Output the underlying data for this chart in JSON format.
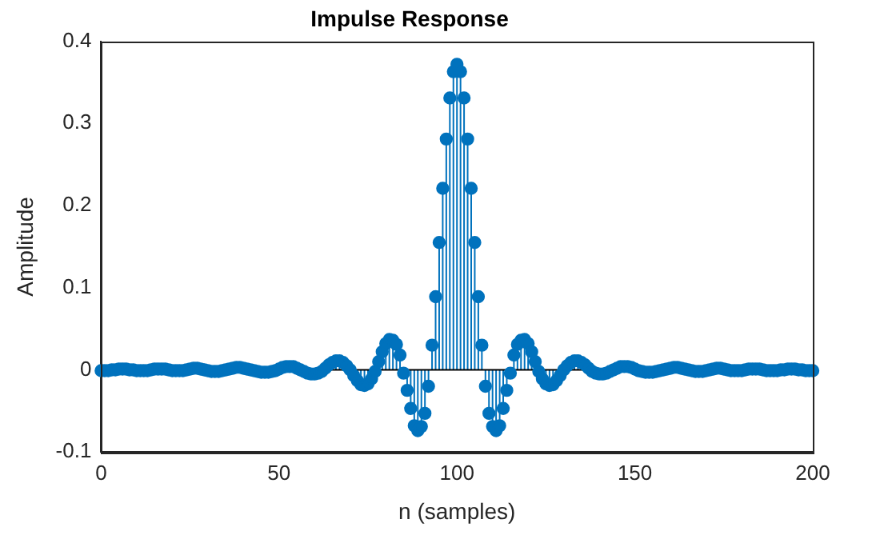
{
  "chart_data": {
    "type": "lollipop",
    "title": "Impulse Response",
    "xlabel": "n (samples)",
    "ylabel": "Amplitude",
    "x": [
      0,
      1,
      2,
      3,
      4,
      5,
      6,
      7,
      8,
      9,
      10,
      11,
      12,
      13,
      14,
      15,
      16,
      17,
      18,
      19,
      20,
      21,
      22,
      23,
      24,
      25,
      26,
      27,
      28,
      29,
      30,
      31,
      32,
      33,
      34,
      35,
      36,
      37,
      38,
      39,
      40,
      41,
      42,
      43,
      44,
      45,
      46,
      47,
      48,
      49,
      50,
      51,
      52,
      53,
      54,
      55,
      56,
      57,
      58,
      59,
      60,
      61,
      62,
      63,
      64,
      65,
      66,
      67,
      68,
      69,
      70,
      71,
      72,
      73,
      74,
      75,
      76,
      77,
      78,
      79,
      80,
      81,
      82,
      83,
      84,
      85,
      86,
      87,
      88,
      89,
      90,
      91,
      92,
      93,
      94,
      95,
      96,
      97,
      98,
      99,
      100,
      101,
      102,
      103,
      104,
      105,
      106,
      107,
      108,
      109,
      110,
      111,
      112,
      113,
      114,
      115,
      116,
      117,
      118,
      119,
      120,
      121,
      122,
      123,
      124,
      125,
      126,
      127,
      128,
      129,
      130,
      131,
      132,
      133,
      134,
      135,
      136,
      137,
      138,
      139,
      140,
      141,
      142,
      143,
      144,
      145,
      146,
      147,
      148,
      149,
      150,
      151,
      152,
      153,
      154,
      155,
      156,
      157,
      158,
      159,
      160,
      161,
      162,
      163,
      164,
      165,
      166,
      167,
      168,
      169,
      170,
      171,
      172,
      173,
      174,
      175,
      176,
      177,
      178,
      179,
      180,
      181,
      182,
      183,
      184,
      185,
      186,
      187,
      188,
      189,
      190,
      191,
      192,
      193,
      194,
      195,
      196,
      197,
      198,
      199,
      200
    ],
    "series": [
      {
        "color": "#0072bd",
        "values": [
          -0.001,
          -0.001,
          -0.001,
          0,
          0,
          0.001,
          0.001,
          0.001,
          0,
          0,
          -0.001,
          -0.001,
          -0.001,
          -0.001,
          0,
          0.001,
          0.001,
          0.001,
          0.001,
          0,
          -0.001,
          -0.001,
          -0.001,
          -0.001,
          0,
          0.001,
          0.002,
          0.002,
          0.001,
          0,
          -0.001,
          -0.002,
          -0.002,
          -0.002,
          -0.001,
          0,
          0.001,
          0.002,
          0.003,
          0.003,
          0.002,
          0.001,
          0,
          -0.001,
          -0.002,
          -0.003,
          -0.003,
          -0.003,
          -0.002,
          -0.001,
          0.001,
          0.003,
          0.004,
          0.004,
          0.004,
          0.002,
          0,
          -0.002,
          -0.004,
          -0.005,
          -0.005,
          -0.004,
          -0.002,
          0.002,
          0.006,
          0.009,
          0.011,
          0.011,
          0.009,
          0.005,
          0,
          -0.007,
          -0.013,
          -0.018,
          -0.019,
          -0.017,
          -0.011,
          -0.002,
          0.01,
          0.022,
          0.032,
          0.037,
          0.036,
          0.031,
          0.018,
          -0.004,
          -0.025,
          -0.047,
          -0.068,
          -0.074,
          -0.069,
          -0.053,
          -0.02,
          0.03,
          0.089,
          0.155,
          0.221,
          0.281,
          0.331,
          0.363,
          0.372,
          0.363,
          0.331,
          0.281,
          0.221,
          0.155,
          0.089,
          0.03,
          -0.02,
          -0.053,
          -0.069,
          -0.074,
          -0.068,
          -0.047,
          -0.025,
          -0.004,
          0.018,
          0.031,
          0.036,
          0.037,
          0.032,
          0.022,
          0.01,
          -0.002,
          -0.011,
          -0.017,
          -0.019,
          -0.018,
          -0.013,
          -0.007,
          0,
          0.005,
          0.009,
          0.011,
          0.011,
          0.009,
          0.006,
          0.002,
          -0.002,
          -0.004,
          -0.005,
          -0.005,
          -0.004,
          -0.002,
          0,
          0.002,
          0.004,
          0.004,
          0.004,
          0.003,
          0.001,
          -0.001,
          -0.002,
          -0.003,
          -0.003,
          -0.003,
          -0.002,
          -0.001,
          0,
          0.001,
          0.002,
          0.003,
          0.003,
          0.002,
          0.001,
          0,
          -0.001,
          -0.002,
          -0.002,
          -0.002,
          -0.001,
          0,
          0.001,
          0.002,
          0.002,
          0.001,
          0,
          -0.001,
          -0.001,
          -0.001,
          -0.001,
          0,
          0.001,
          0.001,
          0.001,
          0.001,
          0,
          -0.001,
          -0.001,
          -0.001,
          -0.001,
          0,
          0,
          0.001,
          0.001,
          0.001,
          0,
          0,
          -0.001,
          -0.001,
          -0.001
        ]
      }
    ],
    "xlim": [
      0,
      200
    ],
    "xticks": [
      0,
      50,
      100,
      150,
      200
    ],
    "ylim": [
      -0.1,
      0.4
    ],
    "yticks": [
      -0.1,
      0,
      0.1,
      0.2,
      0.3,
      0.4
    ],
    "grid": false,
    "legend": false,
    "marker": "circle"
  }
}
